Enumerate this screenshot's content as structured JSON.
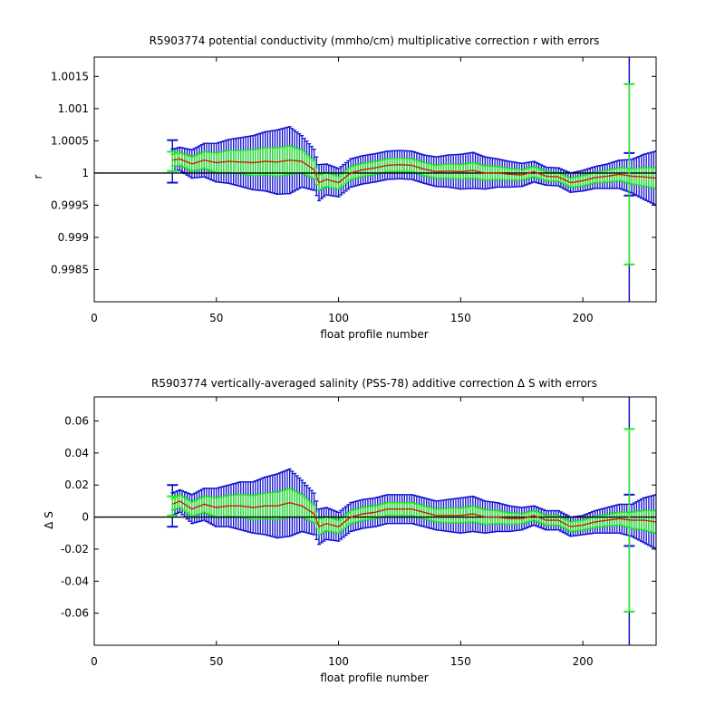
{
  "chart_data": [
    {
      "type": "line",
      "title": "R5903774 potential conductivity (mmho/cm) multiplicative correction r with errors",
      "xlabel": "float profile number",
      "ylabel": "r",
      "xlim": [
        0,
        230
      ],
      "ylim": [
        0.998,
        1.0018
      ],
      "xticks": [
        0,
        50,
        100,
        150,
        200
      ],
      "yticks": [
        0.9985,
        0.999,
        0.9995,
        1,
        1.0005,
        1.001,
        1.0015
      ],
      "ytick_labels": [
        "0.9985",
        "0.999",
        "0.9995",
        "1",
        "1.0005",
        "1.001",
        "1.0015"
      ],
      "reference_line": 1,
      "vertical_marker_x": 219,
      "grid": false,
      "series": [
        {
          "role": "correction",
          "color": "#cc2200",
          "x": [
            32,
            35,
            40,
            45,
            50,
            55,
            60,
            65,
            70,
            75,
            80,
            85,
            90,
            92,
            95,
            100,
            105,
            110,
            115,
            120,
            125,
            130,
            135,
            140,
            145,
            150,
            155,
            160,
            165,
            170,
            175,
            180,
            185,
            190,
            195,
            200,
            205,
            210,
            215,
            220,
            225,
            230
          ],
          "values": [
            1.0002,
            1.00022,
            1.00014,
            1.0002,
            1.00016,
            1.00018,
            1.00017,
            1.00016,
            1.00018,
            1.00017,
            1.0002,
            1.00018,
            1.00005,
            0.99985,
            0.9999,
            0.99985,
            1.0,
            1.00005,
            1.00008,
            1.00012,
            1.00013,
            1.00012,
            1.00006,
            1.00002,
            1.00003,
            1.00002,
            1.00004,
            1.0,
            1.0,
            0.99998,
            0.99997,
            1.00002,
            0.99995,
            0.99994,
            0.99985,
            0.99988,
            0.99993,
            0.99995,
            0.99998,
            0.99995,
            0.99994,
            0.99992
          ],
          "error_wide": [
            0.00017,
            0.00018,
            0.00022,
            0.00026,
            0.0003,
            0.00034,
            0.00038,
            0.00042,
            0.00046,
            0.0005,
            0.00052,
            0.0004,
            0.00032,
            0.00028,
            0.00024,
            0.00022,
            0.00022,
            0.00022,
            0.00022,
            0.00022,
            0.00022,
            0.00022,
            0.00022,
            0.00023,
            0.00025,
            0.00027,
            0.00028,
            0.00025,
            0.00022,
            0.0002,
            0.00018,
            0.00016,
            0.00014,
            0.00014,
            0.00015,
            0.00016,
            0.00017,
            0.00019,
            0.00022,
            0.00026,
            0.00035,
            0.00042
          ],
          "error_narrow": [
            9e-05,
            0.0001,
            0.00011,
            0.00013,
            0.00015,
            0.00017,
            0.00018,
            0.0002,
            0.00021,
            0.00022,
            0.00022,
            0.00018,
            0.00014,
            0.00012,
            0.00011,
            0.0001,
            0.0001,
            0.0001,
            0.0001,
            0.0001,
            0.0001,
            0.0001,
            0.0001,
            0.0001,
            0.00011,
            0.00011,
            0.00012,
            0.00011,
            0.0001,
            9e-05,
            8e-05,
            8e-05,
            7e-05,
            7e-05,
            7e-05,
            8e-05,
            8e-05,
            9e-05,
            0.0001,
            0.00012,
            0.00014,
            0.00016
          ]
        }
      ],
      "outlier_errorbars": [
        {
          "x": 32,
          "center": 1.00018,
          "wide": 0.00033,
          "narrow": 0.00015
        },
        {
          "x": 219,
          "center": 0.99998,
          "wide": 0.00033,
          "narrow": 0.0014
        }
      ]
    },
    {
      "type": "line",
      "title": "R5903774 vertically-averaged salinity (PSS-78) additive correction Δ S with errors",
      "xlabel": "float profile number",
      "ylabel": "Δ S",
      "xlim": [
        0,
        230
      ],
      "ylim": [
        -0.08,
        0.075
      ],
      "xticks": [
        0,
        50,
        100,
        150,
        200
      ],
      "yticks": [
        -0.06,
        -0.04,
        -0.02,
        0,
        0.02,
        0.04,
        0.06
      ],
      "ytick_labels": [
        "-0.06",
        "-0.04",
        "-0.02",
        "0",
        "0.02",
        "0.04",
        "0.06"
      ],
      "reference_line": 0,
      "vertical_marker_x": 219,
      "grid": false,
      "series": [
        {
          "role": "correction",
          "color": "#cc2200",
          "x": [
            32,
            35,
            40,
            45,
            50,
            55,
            60,
            65,
            70,
            75,
            80,
            85,
            90,
            92,
            95,
            100,
            105,
            110,
            115,
            120,
            125,
            130,
            135,
            140,
            145,
            150,
            155,
            160,
            165,
            170,
            175,
            180,
            185,
            190,
            195,
            200,
            205,
            210,
            215,
            220,
            225,
            230
          ],
          "values": [
            0.008,
            0.01,
            0.005,
            0.008,
            0.006,
            0.007,
            0.007,
            0.006,
            0.007,
            0.007,
            0.009,
            0.007,
            0.002,
            -0.006,
            -0.004,
            -0.006,
            0.0,
            0.002,
            0.003,
            0.005,
            0.005,
            0.005,
            0.003,
            0.001,
            0.001,
            0.001,
            0.002,
            0.0,
            0.0,
            -0.001,
            -0.001,
            0.001,
            -0.002,
            -0.002,
            -0.006,
            -0.005,
            -0.003,
            -0.002,
            -0.001,
            -0.002,
            -0.002,
            -0.003
          ],
          "error_wide": [
            0.007,
            0.007,
            0.009,
            0.01,
            0.012,
            0.013,
            0.015,
            0.016,
            0.018,
            0.02,
            0.021,
            0.016,
            0.013,
            0.011,
            0.01,
            0.009,
            0.009,
            0.009,
            0.009,
            0.009,
            0.009,
            0.009,
            0.009,
            0.009,
            0.01,
            0.011,
            0.011,
            0.01,
            0.009,
            0.008,
            0.007,
            0.006,
            0.006,
            0.006,
            0.006,
            0.006,
            0.007,
            0.008,
            0.009,
            0.01,
            0.014,
            0.017
          ],
          "error_narrow": [
            0.0035,
            0.004,
            0.0045,
            0.005,
            0.006,
            0.0065,
            0.007,
            0.0075,
            0.008,
            0.0085,
            0.009,
            0.007,
            0.0055,
            0.005,
            0.0045,
            0.004,
            0.004,
            0.004,
            0.004,
            0.004,
            0.004,
            0.004,
            0.004,
            0.004,
            0.0045,
            0.0045,
            0.005,
            0.0045,
            0.004,
            0.0035,
            0.003,
            0.003,
            0.003,
            0.003,
            0.003,
            0.003,
            0.0035,
            0.0035,
            0.004,
            0.005,
            0.006,
            0.007
          ]
        }
      ],
      "outlier_errorbars": [
        {
          "x": 32,
          "center": 0.007,
          "wide": 0.013,
          "narrow": 0.006
        },
        {
          "x": 219,
          "center": -0.002,
          "wide": 0.016,
          "narrow": 0.057
        }
      ]
    }
  ],
  "colors": {
    "wide_error": "#1010d0",
    "narrow_error": "#22ee22",
    "correction_line": "#cc2200",
    "reference_line": "#000000",
    "vertical_marker": "#1010d0"
  }
}
